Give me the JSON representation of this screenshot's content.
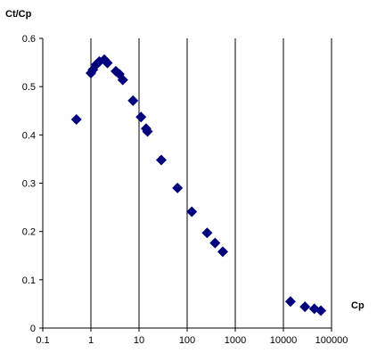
{
  "chart_data": {
    "type": "scatter",
    "xlabel": "Cp",
    "ylabel": "Ct/Cp",
    "x_scale": "log",
    "xlim": [
      0.1,
      100000
    ],
    "ylim": [
      0,
      0.6
    ],
    "x_ticks": [
      "0.1",
      "1",
      "10",
      "100",
      "1000",
      "10000",
      "100000"
    ],
    "y_ticks": [
      "0",
      "0.1",
      "0.2",
      "0.3",
      "0.4",
      "0.5",
      "0.6"
    ],
    "grid": "vertical",
    "legend": "none",
    "marker": "diamond",
    "marker_color": "#000080",
    "points": [
      {
        "x": 0.5,
        "y": 0.432
      },
      {
        "x": 1.0,
        "y": 0.528
      },
      {
        "x": 1.1,
        "y": 0.535
      },
      {
        "x": 1.3,
        "y": 0.546
      },
      {
        "x": 1.5,
        "y": 0.552
      },
      {
        "x": 1.9,
        "y": 0.556
      },
      {
        "x": 2.2,
        "y": 0.549
      },
      {
        "x": 3.3,
        "y": 0.532
      },
      {
        "x": 3.9,
        "y": 0.526
      },
      {
        "x": 4.6,
        "y": 0.514
      },
      {
        "x": 7.5,
        "y": 0.471
      },
      {
        "x": 11,
        "y": 0.437
      },
      {
        "x": 14,
        "y": 0.413
      },
      {
        "x": 15,
        "y": 0.407
      },
      {
        "x": 29,
        "y": 0.348
      },
      {
        "x": 63,
        "y": 0.29
      },
      {
        "x": 125,
        "y": 0.241
      },
      {
        "x": 260,
        "y": 0.197
      },
      {
        "x": 380,
        "y": 0.176
      },
      {
        "x": 550,
        "y": 0.158
      },
      {
        "x": 14000,
        "y": 0.055
      },
      {
        "x": 28000,
        "y": 0.044
      },
      {
        "x": 44000,
        "y": 0.04
      },
      {
        "x": 60000,
        "y": 0.036
      }
    ]
  }
}
